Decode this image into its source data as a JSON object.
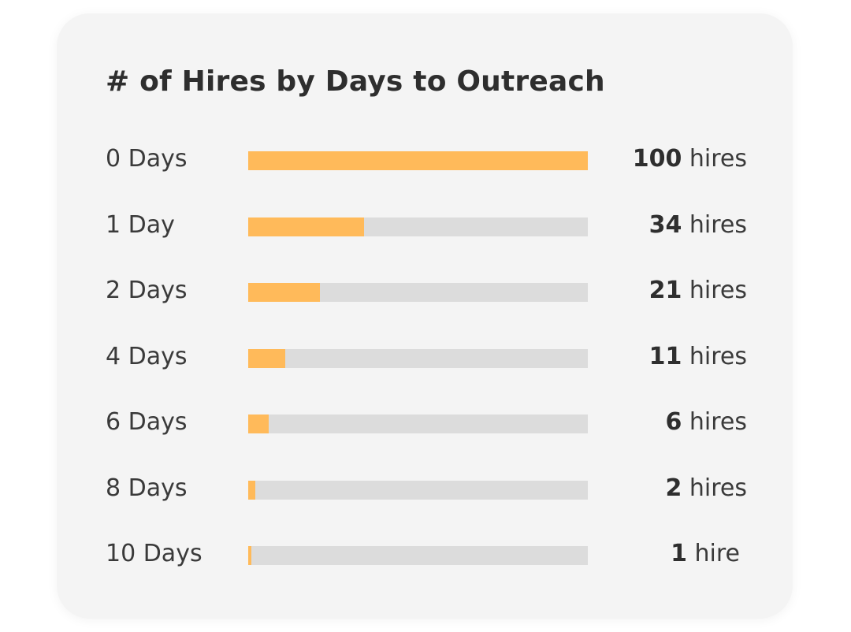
{
  "colors": {
    "bar_fill": "#ffba5a",
    "bar_track": "#dcdcdc",
    "card_background": "#f4f4f4",
    "text": "#3a3a3a"
  },
  "chart_data": {
    "type": "bar",
    "orientation": "horizontal",
    "title": "# of Hires by Days to Outreach",
    "xlabel": "",
    "ylabel": "",
    "xlim": [
      0,
      100
    ],
    "grid": false,
    "categories": [
      "0 Days",
      "1 Day",
      "2 Days",
      "4 Days",
      "6 Days",
      "8 Days",
      "10 Days"
    ],
    "values": [
      100,
      34,
      21,
      11,
      6,
      2,
      1
    ],
    "value_labels": [
      {
        "number": "100",
        "unit": "hires"
      },
      {
        "number": "34",
        "unit": "hires"
      },
      {
        "number": "21",
        "unit": "hires"
      },
      {
        "number": "11",
        "unit": "hires"
      },
      {
        "number": "6",
        "unit": "hires"
      },
      {
        "number": "2",
        "unit": "hires"
      },
      {
        "number": "1",
        "unit": "hire"
      }
    ]
  }
}
